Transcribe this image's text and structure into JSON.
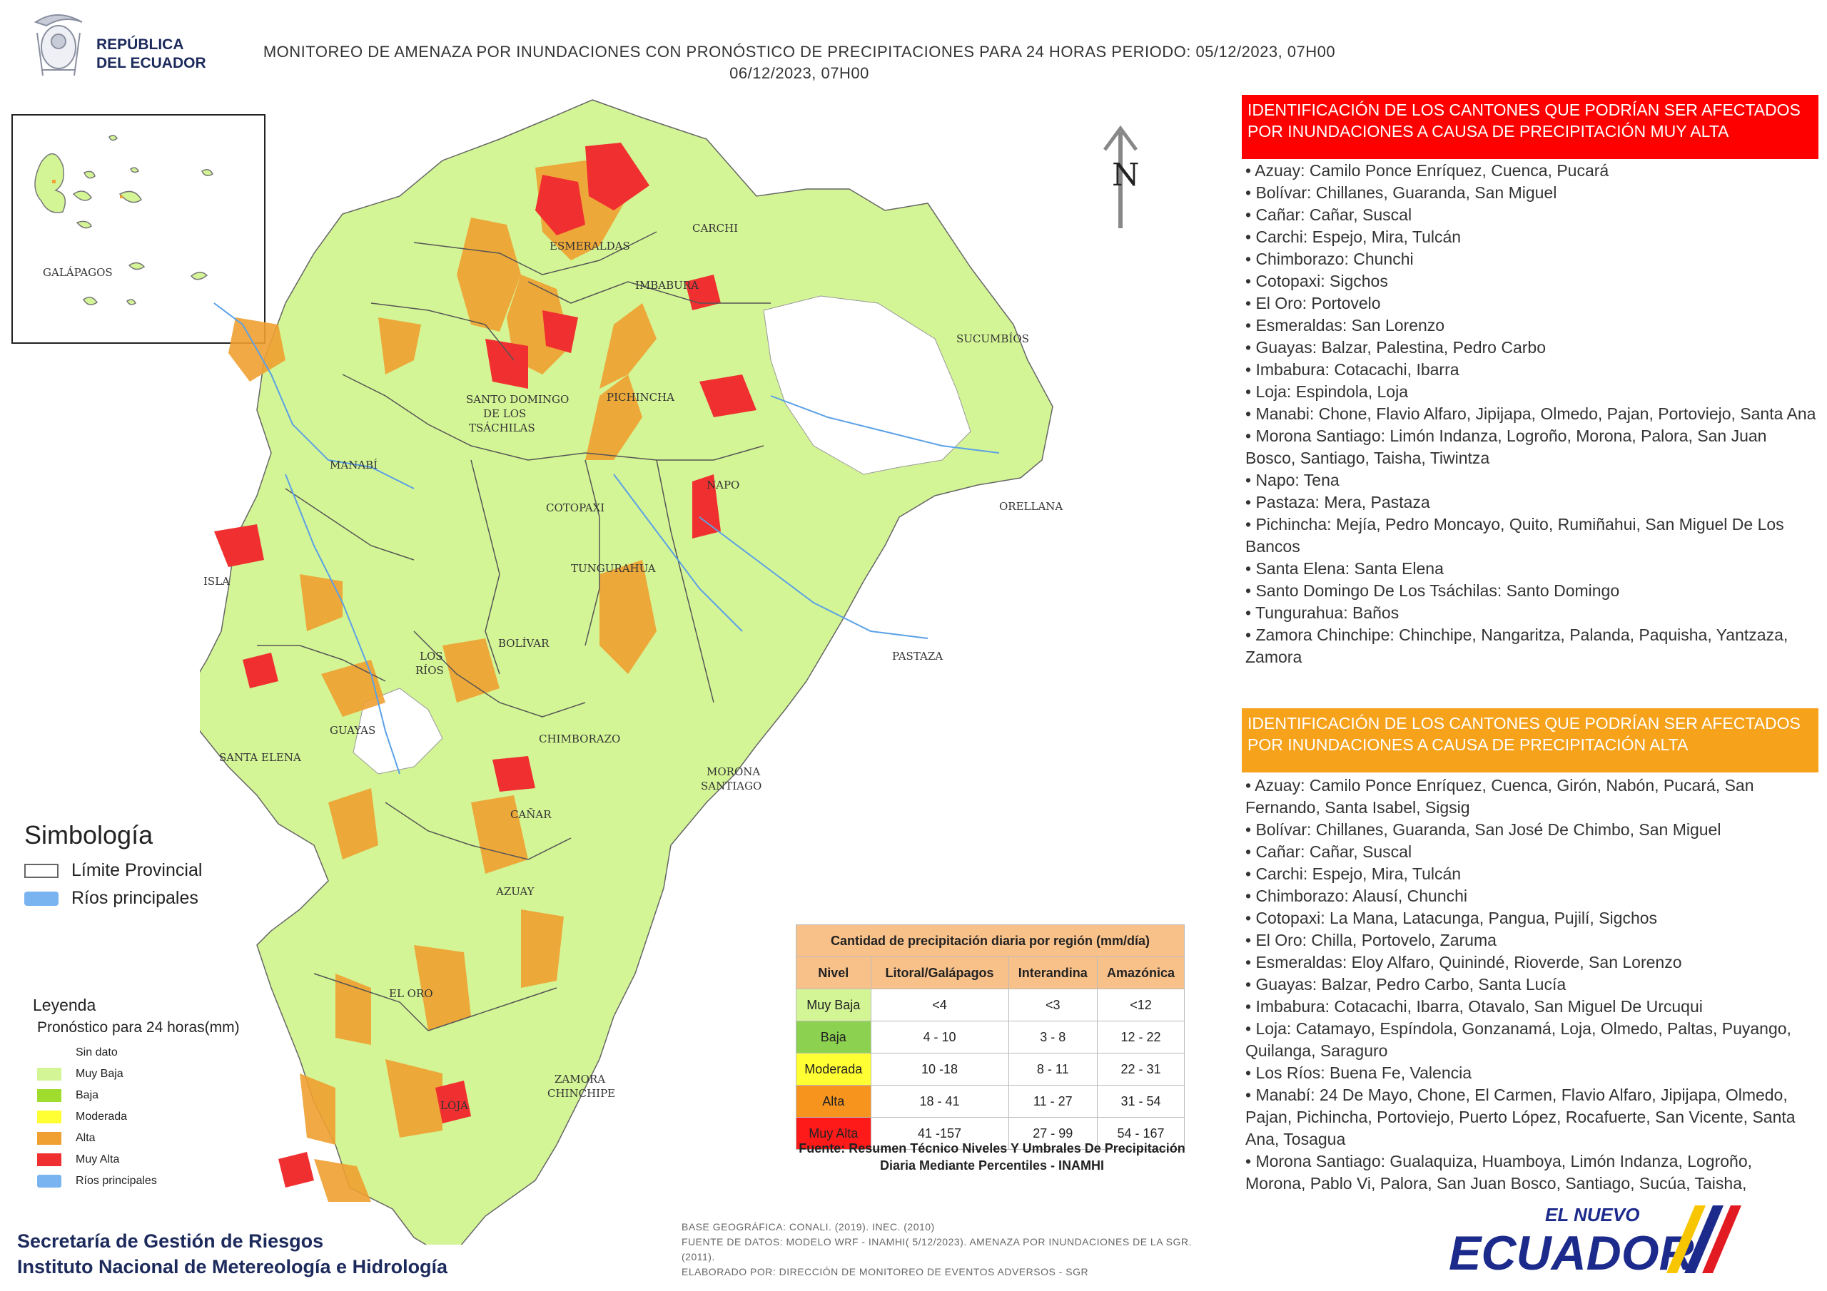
{
  "header": {
    "logo_line1": "REPÚBLICA",
    "logo_line2": "DEL ECUADOR",
    "title_line1": "MONITOREO DE AMENAZA POR INUNDACIONES  CON PRONÓSTICO DE  PRECIPITACIONES PARA 24 HORAS  PERIODO: 05/12/2023, 07H00",
    "title_line2": "06/12/2023, 07H00"
  },
  "inset": {
    "label": "GALÁPAGOS"
  },
  "north": {
    "label": "N"
  },
  "provinces": [
    "ESMERALDAS",
    "CARCHI",
    "IMBABURA",
    "SUCUMBÍOS",
    "SANTO DOMINGO",
    "DE LOS",
    "TSÁCHILAS",
    "PICHINCHA",
    "MANABÍ",
    "NAPO",
    "ORELLANA",
    "COTOPAXI",
    "TUNGURAHUA",
    "ISLA",
    "BOLÍVAR",
    "LOS",
    "RÍOS",
    "PASTAZA",
    "GUAYAS",
    "CHIMBORAZO",
    "SANTA ELENA",
    "MORONA",
    "SANTIAGO",
    "CAÑAR",
    "AZUAY",
    "EL ORO",
    "ZAMORA",
    "CHINCHIPE",
    "LOJA"
  ],
  "panel_red": {
    "heading": "IDENTIFICACIÓN DE LOS CANTONES QUE PODRÍAN SER AFECTADOS POR INUNDACIONES  A CAUSA DE PRECIPITACIÓN MUY ALTA",
    "items": [
      "• Azuay: Camilo Ponce Enríquez, Cuenca, Pucará",
      "• Bolívar: Chillanes, Guaranda, San Miguel",
      "• Cañar: Cañar, Suscal",
      "• Carchi: Espejo, Mira, Tulcán",
      "• Chimborazo: Chunchi",
      "• Cotopaxi: Sigchos",
      "• El Oro: Portovelo",
      "• Esmeraldas: San Lorenzo",
      "• Guayas: Balzar, Palestina, Pedro Carbo",
      "• Imbabura: Cotacachi, Ibarra",
      "• Loja: Espindola, Loja",
      "• Manabi: Chone, Flavio Alfaro, Jipijapa, Olmedo, Pajan, Portoviejo, Santa Ana",
      "• Morona Santiago: Limón Indanza, Logroño, Morona, Palora, San Juan Bosco, Santiago, Taisha, Tiwintza",
      "• Napo: Tena",
      "• Pastaza: Mera, Pastaza",
      "• Pichincha: Mejía, Pedro Moncayo, Quito, Rumiñahui, San Miguel De Los Bancos",
      "• Santa Elena: Santa Elena",
      "• Santo Domingo De Los Tsáchilas: Santo Domingo",
      "• Tungurahua: Baños",
      "• Zamora Chinchipe: Chinchipe, Nangaritza, Palanda, Paquisha, Yantzaza, Zamora"
    ]
  },
  "panel_orange": {
    "heading": "IDENTIFICACIÓN DE LOS CANTONES QUE  PODRÍAN SER AFECTADOS POR INUNDACIONES  A CAUSA DE PRECIPITACIÓN  ALTA",
    "items": [
      "• Azuay: Camilo Ponce Enríquez, Cuenca, Girón, Nabón, Pucará, San Fernando, Santa Isabel, Sigsig",
      "• Bolívar: Chillanes, Guaranda, San José De Chimbo, San Miguel",
      "• Cañar: Cañar, Suscal",
      "• Carchi: Espejo, Mira, Tulcán",
      "• Chimborazo: Alausí, Chunchi",
      "• Cotopaxi: La Mana, Latacunga, Pangua, Pujilí, Sigchos",
      "• El Oro: Chilla, Portovelo, Zaruma",
      "• Esmeraldas: Eloy Alfaro, Quinindé, Rioverde, San Lorenzo",
      "• Guayas: Balzar, Pedro Carbo, Santa Lucía",
      "• Imbabura: Cotacachi, Ibarra, Otavalo, San Miguel De Urcuqui",
      "• Loja: Catamayo, Espíndola, Gonzanamá, Loja, Olmedo, Paltas, Puyango, Quilanga, Saraguro",
      "• Los Ríos: Buena Fe, Valencia",
      "• Manabí: 24 De Mayo, Chone, El Carmen, Flavio Alfaro, Jipijapa, Olmedo, Pajan, Pichincha, Portoviejo, Puerto López, Rocafuerte, San Vicente, Santa Ana, Tosagua",
      "• Morona Santiago: Gualaquiza, Huamboya, Limón Indanza, Logroño, Morona, Pablo Vi, Palora, San Juan Bosco, Santiago, Sucúa, Taisha,"
    ]
  },
  "simbologia": {
    "title": "Simbología",
    "items": [
      {
        "label": "Límite Provincial",
        "color": "#ffffff"
      },
      {
        "label": "Ríos principales",
        "color": "#79b4f0"
      }
    ]
  },
  "leyenda": {
    "title": "Leyenda",
    "subtitle": "Pronóstico para 24 horas(mm)",
    "items": [
      {
        "label": "Sin dato",
        "color": "#ffffff"
      },
      {
        "label": "Muy Baja",
        "color": "#d4f596"
      },
      {
        "label": "Baja",
        "color": "#9fdc2e"
      },
      {
        "label": "Moderada",
        "color": "#ffff33"
      },
      {
        "label": "Alta",
        "color": "#f0a030"
      },
      {
        "label": "Muy Alta",
        "color": "#f03030"
      },
      {
        "label": "Ríos principales",
        "color": "#79b4f0"
      }
    ]
  },
  "table": {
    "title": "Cantidad de precipitación diaria por región (mm/día)",
    "headers": [
      "Nivel",
      "Litoral/Galápagos",
      "Interandina",
      "Amazónica"
    ],
    "rows": [
      {
        "nivel": "Muy Baja",
        "color": "#d4f596",
        "values": [
          "<4",
          "<3",
          "<12"
        ]
      },
      {
        "nivel": "Baja",
        "color": "#8cd250",
        "values": [
          "4 - 10",
          "3 - 8",
          "12 - 22"
        ]
      },
      {
        "nivel": "Moderada",
        "color": "#ffff33",
        "values": [
          "10 -18",
          "8 - 11",
          "22 - 31"
        ]
      },
      {
        "nivel": "Alta",
        "color": "#f7941d",
        "values": [
          "18 - 41",
          "11 - 27",
          "31 - 54"
        ]
      },
      {
        "nivel": "Muy Alta",
        "color": "#ff1a1a",
        "values": [
          "41 -157",
          "27 - 99",
          "54 - 167"
        ]
      }
    ],
    "note": "Fuente: Resumen Técnico Niveles Y Umbrales De Precipitación Diaria Mediante Percentiles - INAMHI"
  },
  "footer": {
    "org1": "Secretaría de Gestión de Riesgos",
    "org2": "Instituto Nacional de Metereología e Hidrología",
    "src1": "BASE GEOGRÁFICA: CONALI. (2019). INEC. (2010)",
    "src2": "FUENTE DE DATOS: MODELO WRF - INAMHI( 5/12/2023).  AMENAZA POR INUNDACIONES DE LA SGR. (2011).",
    "src3": "ELABORADO POR: DIRECCIÓN DE MONITOREO DE EVENTOS ADVERSOS - SGR",
    "brand_top": "EL NUEVO",
    "brand_main": "ECUADOR"
  }
}
